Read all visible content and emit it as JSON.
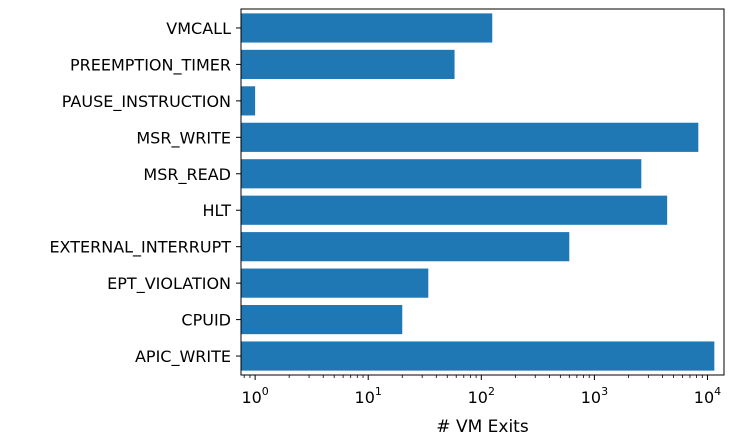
{
  "chart_data": {
    "type": "bar",
    "orientation": "horizontal",
    "x_scale": "log",
    "xlim": [
      0.75,
      14000
    ],
    "xlabel": "# VM Exits",
    "ylabel": "",
    "title": "",
    "categories": [
      "APIC_WRITE",
      "CPUID",
      "EPT_VIOLATION",
      "EXTERNAL_INTERRUPT",
      "HLT",
      "MSR_READ",
      "MSR_WRITE",
      "PAUSE_INSTRUCTION",
      "PREEMPTION_TIMER",
      "VMCALL"
    ],
    "values": [
      11500,
      20,
      34,
      600,
      4400,
      2600,
      8300,
      1,
      58,
      125
    ],
    "x_ticks": [
      {
        "value": 1,
        "base": "10",
        "exp": "0"
      },
      {
        "value": 10,
        "base": "10",
        "exp": "1"
      },
      {
        "value": 100,
        "base": "10",
        "exp": "2"
      },
      {
        "value": 1000,
        "base": "10",
        "exp": "3"
      },
      {
        "value": 10000,
        "base": "10",
        "exp": "4"
      }
    ],
    "bar_color": "#1f77b4",
    "grid": false,
    "legend": "none"
  }
}
